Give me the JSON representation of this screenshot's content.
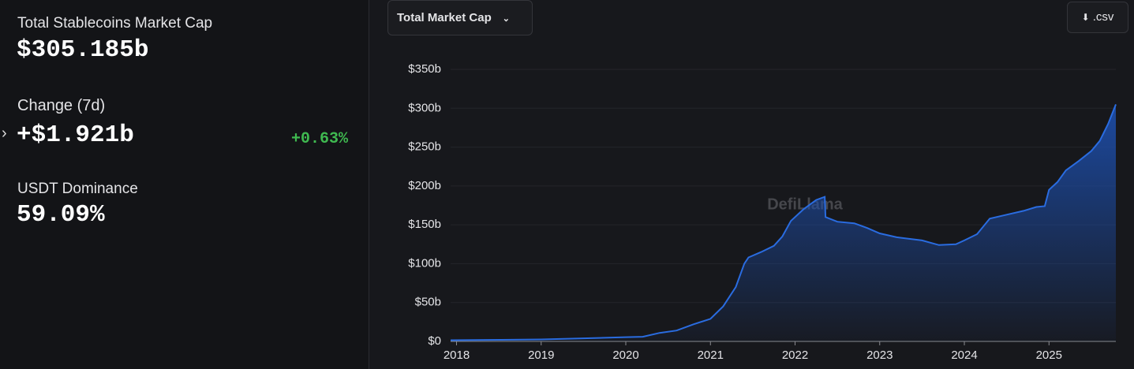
{
  "stats": {
    "total": {
      "label": "Total Stablecoins Market Cap",
      "value": "$305.185b"
    },
    "change": {
      "label": "Change (7d)",
      "value": "+$1.921b",
      "percent": "+0.63%"
    },
    "dominance": {
      "label": "USDT Dominance",
      "value": "59.09%"
    }
  },
  "controls": {
    "metric": "Total Market Cap",
    "download": ".csv"
  },
  "watermark": "DefiLlama",
  "chart_data": {
    "type": "area",
    "color": "#2a6ce0",
    "x": [
      2017.93,
      2018.5,
      2019.0,
      2019.5,
      2020.0,
      2020.2,
      2020.4,
      2020.6,
      2020.8,
      2021.0,
      2021.15,
      2021.3,
      2021.4,
      2021.45,
      2021.6,
      2021.75,
      2021.85,
      2021.95,
      2022.1,
      2022.25,
      2022.35,
      2022.36,
      2022.5,
      2022.7,
      2022.85,
      2023.0,
      2023.2,
      2023.5,
      2023.7,
      2023.9,
      2024.0,
      2024.15,
      2024.3,
      2024.5,
      2024.7,
      2024.85,
      2024.95,
      2025.0,
      2025.1,
      2025.2,
      2025.35,
      2025.5,
      2025.6,
      2025.7,
      2025.79
    ],
    "values": [
      1.5,
      2,
      2.5,
      4,
      5.5,
      6,
      11,
      14,
      22,
      29,
      45,
      70,
      100,
      108,
      115,
      123,
      135,
      155,
      170,
      182,
      186,
      160,
      154,
      152,
      146,
      139,
      134,
      130,
      124,
      125,
      130,
      138,
      158,
      163,
      168,
      173,
      174,
      195,
      205,
      220,
      232,
      245,
      258,
      280,
      305
    ],
    "xlim": [
      2017.93,
      2025.79
    ],
    "xticks": [
      2018,
      2019,
      2020,
      2021,
      2022,
      2023,
      2024,
      2025
    ],
    "ylim": [
      0,
      350
    ],
    "yticks": [
      {
        "value": 0,
        "label": "$0"
      },
      {
        "value": 50,
        "label": "$50b"
      },
      {
        "value": 100,
        "label": "$100b"
      },
      {
        "value": 150,
        "label": "$150b"
      },
      {
        "value": 200,
        "label": "$200b"
      },
      {
        "value": 250,
        "label": "$250b"
      },
      {
        "value": 300,
        "label": "$300b"
      },
      {
        "value": 350,
        "label": "$350b"
      }
    ],
    "grid": true
  }
}
